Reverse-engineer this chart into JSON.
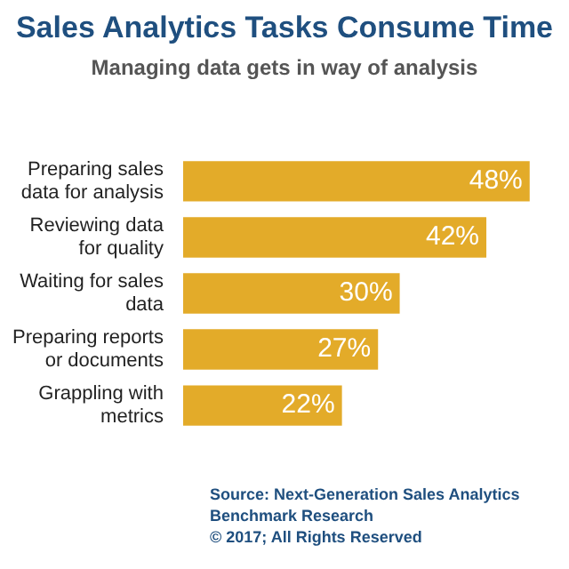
{
  "chart_data": {
    "type": "bar",
    "orientation": "horizontal",
    "title": "Sales Analytics Tasks Consume Time",
    "subtitle": "Managing data gets in way of analysis",
    "categories": [
      "Preparing sales data for analysis",
      "Reviewing data for quality",
      "Waiting for sales data",
      "Preparing reports or documents",
      "Grappling with metrics"
    ],
    "values": [
      48,
      42,
      30,
      27,
      22
    ],
    "color": "#e3ab29",
    "value_labels": [
      "48%",
      "42%",
      "30%",
      "27%",
      "22%"
    ],
    "tick_labels": "y",
    "annotations": [
      "Source: Next-Generation Sales Analytics Benchmark Research",
      "© 2017; All Rights Reserved"
    ]
  }
}
